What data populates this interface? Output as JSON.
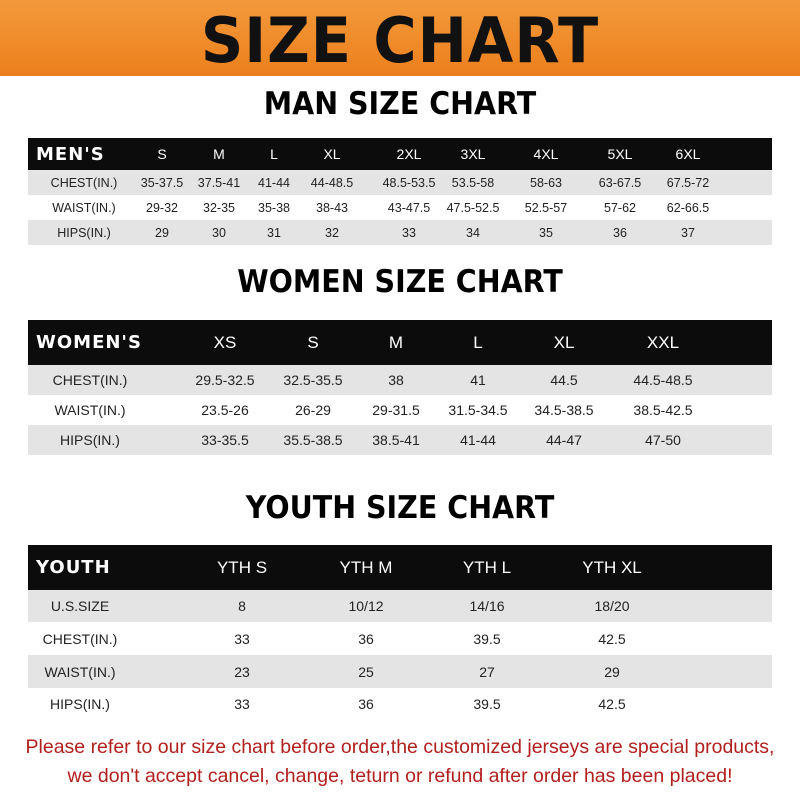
{
  "banner": {
    "title": "SIZE CHART"
  },
  "men": {
    "title": "MAN SIZE CHART",
    "header": [
      "MEN'S",
      "S",
      "M",
      "L",
      "XL",
      "2XL",
      "3XL",
      "4XL",
      "5XL",
      "6XL"
    ],
    "rows": [
      [
        "CHEST(IN.)",
        "35-37.5",
        "37.5-41",
        "41-44",
        "44-48.5",
        "48.5-53.5",
        "53.5-58",
        "58-63",
        "63-67.5",
        "67.5-72"
      ],
      [
        "WAIST(IN.)",
        "29-32",
        "32-35",
        "35-38",
        "38-43",
        "43-47.5",
        "47.5-52.5",
        "52.5-57",
        "57-62",
        "62-66.5"
      ],
      [
        "HIPS(IN.)",
        "29",
        "30",
        "31",
        "32",
        "33",
        "34",
        "35",
        "36",
        "37"
      ]
    ]
  },
  "women": {
    "title": "WOMEN SIZE CHART",
    "header": [
      "WOMEN'S",
      "XS",
      "S",
      "M",
      "L",
      "XL",
      "XXL"
    ],
    "rows": [
      [
        "CHEST(IN.)",
        "29.5-32.5",
        "32.5-35.5",
        "38",
        "41",
        "44.5",
        "44.5-48.5"
      ],
      [
        "WAIST(IN.)",
        "23.5-26",
        "26-29",
        "29-31.5",
        "31.5-34.5",
        "34.5-38.5",
        "38.5-42.5"
      ],
      [
        "HIPS(IN.)",
        "33-35.5",
        "35.5-38.5",
        "38.5-41",
        "41-44",
        "44-47",
        "47-50"
      ]
    ]
  },
  "youth": {
    "title": "YOUTH SIZE CHART",
    "header": [
      "YOUTH",
      "YTH S",
      "YTH M",
      "YTH L",
      "YTH XL"
    ],
    "rows": [
      [
        "U.S.SIZE",
        "8",
        "10/12",
        "14/16",
        "18/20"
      ],
      [
        "CHEST(IN.)",
        "33",
        "36",
        "39.5",
        "42.5"
      ],
      [
        "WAIST(IN.)",
        "23",
        "25",
        "27",
        "29"
      ],
      [
        "HIPS(IN.)",
        "33",
        "36",
        "39.5",
        "42.5"
      ]
    ]
  },
  "footer": {
    "line1": "Please refer to our size chart before order,the customized jerseys are special products,",
    "line2": "we don't accept cancel, change, teturn or refund after order has been placed!"
  },
  "colors": {
    "banner": "#ee8a2a",
    "header_row": "#0c0c0c",
    "stripe": "#e4e4e4",
    "notice_text": "#b2201e"
  }
}
